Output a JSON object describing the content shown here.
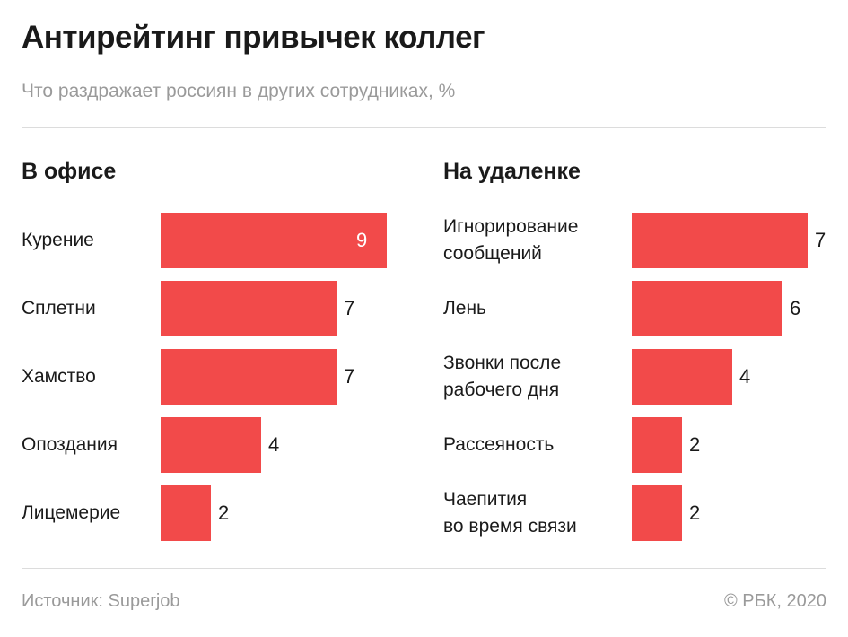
{
  "title": "Антирейтинг привычек коллег",
  "subtitle": "Что раздражает россиян в других сотрудниках, %",
  "footer": {
    "source": "Источник: Superjob",
    "copyright": "© РБК, 2020"
  },
  "colors": {
    "bar": "#f24a4a",
    "text": "#1a1a1a",
    "muted": "#9a9a9a",
    "rule": "#dcdcdc"
  },
  "chart_data": [
    {
      "type": "bar",
      "orientation": "horizontal",
      "title": "В офисе",
      "categories": [
        "Курение",
        "Сплетни",
        "Хамство",
        "Опоздания",
        "Лицемерие"
      ],
      "values": [
        9,
        7,
        7,
        4,
        2
      ]
    },
    {
      "type": "bar",
      "orientation": "horizontal",
      "title": "На удаленке",
      "categories": [
        "Игнорирование сообщений",
        "Лень",
        "Звонки после рабочего дня",
        "Рассеяность",
        "Чаепития во время связи"
      ],
      "category_lines": [
        [
          "Игнорирование",
          "сообщений"
        ],
        [
          "Лень"
        ],
        [
          "Звонки после",
          "рабочего дня"
        ],
        [
          "Рассеяность"
        ],
        [
          "Чаепития",
          "во время связи"
        ]
      ],
      "values": [
        7,
        6,
        4,
        2,
        2
      ]
    }
  ]
}
